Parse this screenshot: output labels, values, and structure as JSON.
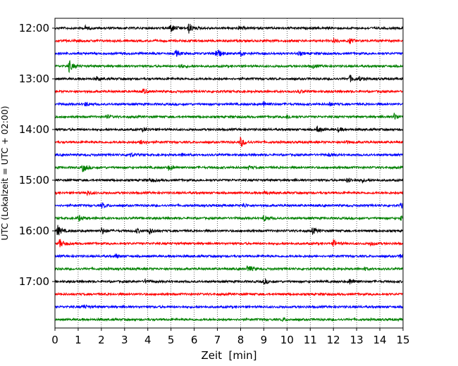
{
  "chart_data": {
    "type": "line",
    "title": "",
    "xlabel": "Zeit  [min]",
    "ylabel": "UTC (Lokalzeit = UTC + 02:00)",
    "xlim": [
      0,
      15
    ],
    "x_ticks": [
      "0",
      "1",
      "2",
      "3",
      "4",
      "5",
      "6",
      "7",
      "8",
      "9",
      "10",
      "11",
      "12",
      "13",
      "14",
      "15"
    ],
    "y_tick_labels": [
      "12:00",
      "13:00",
      "14:00",
      "15:00",
      "16:00",
      "17:00"
    ],
    "trace_interval_min": 15,
    "vertical_grid": "dotted",
    "colors": [
      "#000000",
      "#ff0000",
      "#0000ff",
      "#008000"
    ],
    "traces": [
      {
        "start": "12:00",
        "color": "#000000",
        "events": [
          [
            1.3,
            0.3
          ],
          [
            4.95,
            0.8
          ],
          [
            5.75,
            0.85
          ],
          [
            7.9,
            0.25
          ]
        ]
      },
      {
        "start": "12:15",
        "color": "#ff0000",
        "events": [
          [
            12.0,
            0.45
          ],
          [
            12.7,
            0.35
          ]
        ]
      },
      {
        "start": "12:30",
        "color": "#0000ff",
        "events": [
          [
            5.2,
            0.5
          ],
          [
            6.95,
            1.0
          ],
          [
            8.0,
            0.35
          ],
          [
            10.5,
            0.25
          ]
        ]
      },
      {
        "start": "12:45",
        "color": "#008000",
        "events": [
          [
            0.6,
            0.9
          ],
          [
            5.4,
            0.3
          ],
          [
            11.1,
            0.3
          ]
        ]
      },
      {
        "start": "13:00",
        "color": "#000000",
        "events": [
          [
            1.8,
            0.3
          ],
          [
            12.7,
            0.55
          ],
          [
            13.1,
            0.3
          ]
        ]
      },
      {
        "start": "13:15",
        "color": "#ff0000",
        "events": [
          [
            3.8,
            0.4
          ],
          [
            10.5,
            0.25
          ]
        ]
      },
      {
        "start": "13:30",
        "color": "#0000ff",
        "events": [
          [
            1.3,
            0.3
          ],
          [
            9.0,
            0.45
          ],
          [
            11.8,
            0.3
          ]
        ]
      },
      {
        "start": "13:45",
        "color": "#008000",
        "events": [
          [
            2.2,
            0.3
          ],
          [
            10.0,
            0.3
          ],
          [
            14.6,
            0.55
          ]
        ]
      },
      {
        "start": "14:00",
        "color": "#000000",
        "events": [
          [
            3.8,
            0.3
          ],
          [
            11.3,
            0.5
          ],
          [
            12.2,
            0.3
          ]
        ]
      },
      {
        "start": "14:15",
        "color": "#ff0000",
        "events": [
          [
            3.7,
            0.5
          ],
          [
            8.0,
            0.8
          ],
          [
            12.5,
            0.3
          ]
        ]
      },
      {
        "start": "14:30",
        "color": "#0000ff",
        "events": [
          [
            3.2,
            0.4
          ],
          [
            5.5,
            0.3
          ],
          [
            11.8,
            0.25
          ]
        ]
      },
      {
        "start": "14:45",
        "color": "#008000",
        "events": [
          [
            1.2,
            0.7
          ],
          [
            4.9,
            0.4
          ],
          [
            8.3,
            0.3
          ]
        ]
      },
      {
        "start": "15:00",
        "color": "#000000",
        "events": [
          [
            4.1,
            0.3
          ],
          [
            12.6,
            0.4
          ],
          [
            13.2,
            0.3
          ]
        ]
      },
      {
        "start": "15:15",
        "color": "#ff0000",
        "events": [
          [
            1.4,
            0.35
          ],
          [
            9.0,
            0.3
          ]
        ]
      },
      {
        "start": "15:30",
        "color": "#0000ff",
        "events": [
          [
            2.0,
            0.4
          ],
          [
            8.1,
            0.3
          ],
          [
            14.9,
            0.35
          ]
        ]
      },
      {
        "start": "15:45",
        "color": "#008000",
        "events": [
          [
            1.0,
            0.55
          ],
          [
            9.0,
            0.6
          ],
          [
            14.9,
            0.35
          ]
        ]
      },
      {
        "start": "16:00",
        "color": "#000000",
        "events": [
          [
            0.1,
            0.9
          ],
          [
            2.0,
            0.55
          ],
          [
            3.5,
            0.35
          ],
          [
            4.05,
            0.5
          ],
          [
            11.1,
            0.5
          ]
        ]
      },
      {
        "start": "16:15",
        "color": "#ff0000",
        "events": [
          [
            0.2,
            0.7
          ],
          [
            12.0,
            0.5
          ],
          [
            13.6,
            0.3
          ]
        ]
      },
      {
        "start": "16:30",
        "color": "#0000ff",
        "events": [
          [
            2.6,
            0.3
          ],
          [
            14.9,
            0.45
          ]
        ]
      },
      {
        "start": "16:45",
        "color": "#008000",
        "events": [
          [
            8.3,
            0.6
          ],
          [
            13.3,
            0.25
          ]
        ]
      },
      {
        "start": "17:00",
        "color": "#000000",
        "events": [
          [
            3.9,
            0.3
          ],
          [
            9.0,
            0.4
          ],
          [
            12.7,
            0.45
          ]
        ]
      },
      {
        "start": "17:15",
        "color": "#ff0000",
        "events": []
      },
      {
        "start": "17:30",
        "color": "#0000ff",
        "events": [
          [
            1.2,
            0.35
          ]
        ]
      },
      {
        "start": "17:45",
        "color": "#008000",
        "events": [
          [
            9.8,
            0.25
          ]
        ]
      }
    ]
  }
}
